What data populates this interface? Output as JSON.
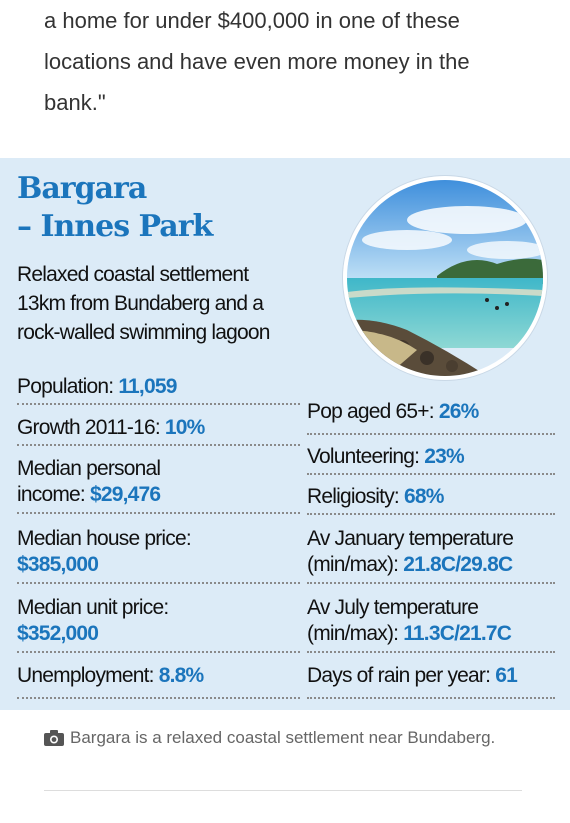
{
  "intro": {
    "lines": [
      "a home for under $400,000 in one of these",
      "locations and have even more money in the",
      "bank.\""
    ]
  },
  "panel": {
    "title_lines": [
      "Bargara",
      "– Innes Park"
    ],
    "tagline_lines": [
      "Relaxed coastal settlement",
      "13km from Bundaberg and a",
      "rock-walled swimming lagoon"
    ],
    "left_stats": {
      "population": {
        "label": "Population: ",
        "value": "11,059"
      },
      "growth": {
        "label": "Growth 2011-16: ",
        "value": "10%"
      },
      "income": {
        "label_line1": "Median personal",
        "label_line2": "income: ",
        "value": "$29,476"
      },
      "house": {
        "label": "Median house price:",
        "value": "$385,000"
      },
      "unit": {
        "label": "Median unit price:",
        "value": "$352,000"
      },
      "unemployment": {
        "label": "Unemployment: ",
        "value": "8.8%"
      }
    },
    "right_stats": {
      "pop65": {
        "label": "Pop aged 65+: ",
        "value": "26%"
      },
      "volunteering": {
        "label": "Volunteering: ",
        "value": "23%"
      },
      "religiosity": {
        "label": "Religiosity: ",
        "value": "68%"
      },
      "jan": {
        "label_line1": "Av January temperature",
        "label_line2": "(min/max): ",
        "value": "21.8C/29.8C"
      },
      "jul": {
        "label_line1": "Av July temperature",
        "label_line2": "(min/max): ",
        "value": "11.3C/21.7C"
      },
      "rain": {
        "label": "Days of rain per year: ",
        "value": "61"
      }
    },
    "colors": {
      "accent": "#1b75bc",
      "panel_bg": "#dcebf7"
    }
  },
  "caption": {
    "icon": "camera-icon",
    "text": "Bargara is a relaxed coastal settlement near Bundaberg."
  }
}
